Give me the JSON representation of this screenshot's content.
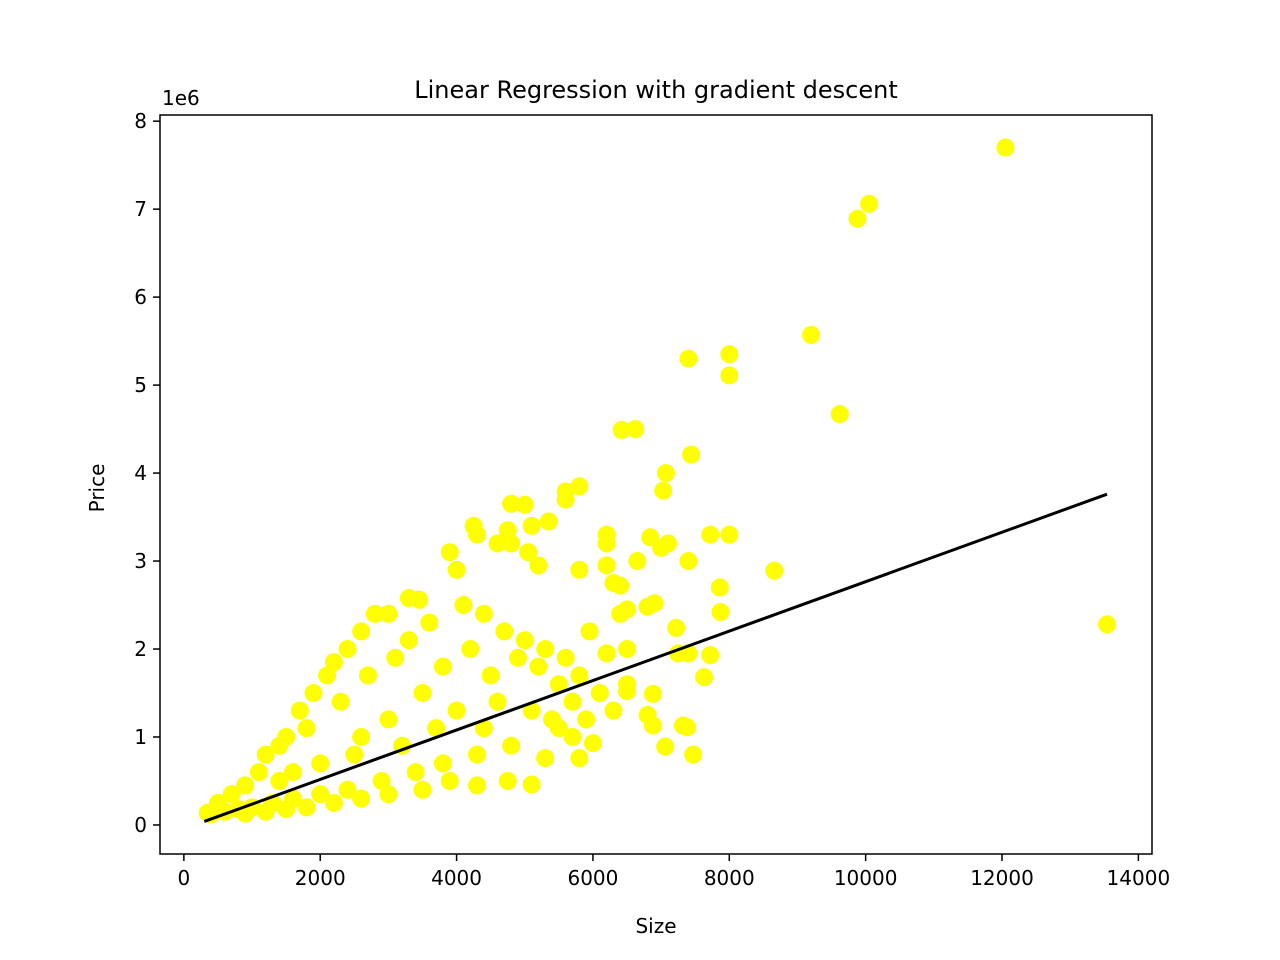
{
  "chart_data": {
    "type": "scatter",
    "title": "Linear Regression with gradient descent",
    "xlabel": "Size",
    "ylabel": "Price",
    "y_offset_label": "1e6",
    "xlim": [
      -350,
      14200
    ],
    "ylim": [
      -330000,
      8070000
    ],
    "xticks": [
      0,
      2000,
      4000,
      6000,
      8000,
      10000,
      12000,
      14000
    ],
    "xtick_labels": [
      "0",
      "2000",
      "4000",
      "6000",
      "8000",
      "10000",
      "12000",
      "14000"
    ],
    "yticks": [
      0,
      1000000,
      2000000,
      3000000,
      4000000,
      5000000,
      6000000,
      7000000,
      8000000
    ],
    "ytick_labels": [
      "0",
      "1",
      "2",
      "3",
      "4",
      "5",
      "6",
      "7",
      "8"
    ],
    "grid": false,
    "colors": {
      "points": "#ffff00",
      "line": "#000000",
      "axes": "#000000"
    },
    "series": [
      {
        "type": "scatter",
        "points": [
          [
            12050,
            7700000
          ],
          [
            10050,
            7060000
          ],
          [
            9880,
            6890000
          ],
          [
            9200,
            5570000
          ],
          [
            9620,
            4670000
          ],
          [
            8000,
            5350000
          ],
          [
            8000,
            5110000
          ],
          [
            7400,
            5300000
          ],
          [
            6420,
            4490000
          ],
          [
            6620,
            4500000
          ],
          [
            7440,
            4210000
          ],
          [
            7070,
            4000000
          ],
          [
            7030,
            3800000
          ],
          [
            5800,
            3850000
          ],
          [
            5600,
            3790000
          ],
          [
            5600,
            3700000
          ],
          [
            4800,
            3650000
          ],
          [
            5000,
            3640000
          ],
          [
            4750,
            3350000
          ],
          [
            5100,
            3400000
          ],
          [
            5350,
            3450000
          ],
          [
            4250,
            3400000
          ],
          [
            7720,
            3300000
          ],
          [
            8000,
            3300000
          ],
          [
            6840,
            3270000
          ],
          [
            7100,
            3200000
          ],
          [
            6200,
            3300000
          ],
          [
            6200,
            3200000
          ],
          [
            7000,
            3150000
          ],
          [
            6200,
            2950000
          ],
          [
            6650,
            3000000
          ],
          [
            7400,
            3000000
          ],
          [
            5800,
            2900000
          ],
          [
            8660,
            2890000
          ],
          [
            7860,
            2700000
          ],
          [
            6300,
            2750000
          ],
          [
            6400,
            2720000
          ],
          [
            6900,
            2520000
          ],
          [
            6800,
            2480000
          ],
          [
            7870,
            2420000
          ],
          [
            6500,
            2450000
          ],
          [
            6400,
            2400000
          ],
          [
            7220,
            2240000
          ],
          [
            13540,
            2280000
          ],
          [
            5950,
            2200000
          ],
          [
            6500,
            2000000
          ],
          [
            6200,
            1950000
          ],
          [
            7400,
            1950000
          ],
          [
            7250,
            1950000
          ],
          [
            7720,
            1930000
          ],
          [
            7630,
            1680000
          ],
          [
            6500,
            1600000
          ],
          [
            6500,
            1520000
          ],
          [
            6880,
            1490000
          ],
          [
            6300,
            1300000
          ],
          [
            6800,
            1250000
          ],
          [
            7320,
            1130000
          ],
          [
            7380,
            1110000
          ],
          [
            6880,
            1130000
          ],
          [
            7060,
            890000
          ],
          [
            7470,
            800000
          ],
          [
            6000,
            930000
          ],
          [
            5800,
            760000
          ],
          [
            5300,
            760000
          ],
          [
            5100,
            460000
          ],
          [
            4750,
            500000
          ],
          [
            3000,
            2400000
          ],
          [
            3300,
            2580000
          ],
          [
            3450,
            2560000
          ],
          [
            3900,
            3100000
          ],
          [
            4000,
            2900000
          ],
          [
            4300,
            3300000
          ],
          [
            4600,
            3200000
          ],
          [
            4800,
            3200000
          ],
          [
            5050,
            3100000
          ],
          [
            5200,
            2950000
          ],
          [
            2200,
            1850000
          ],
          [
            2400,
            2000000
          ],
          [
            2600,
            2200000
          ],
          [
            2800,
            2400000
          ],
          [
            1500,
            1000000
          ],
          [
            1700,
            1300000
          ],
          [
            1900,
            1500000
          ],
          [
            2100,
            1700000
          ],
          [
            3500,
            1500000
          ],
          [
            3800,
            1800000
          ],
          [
            4200,
            2000000
          ],
          [
            4500,
            1700000
          ],
          [
            4900,
            1900000
          ],
          [
            5200,
            1800000
          ],
          [
            5500,
            1600000
          ],
          [
            5700,
            1400000
          ],
          [
            5900,
            1200000
          ],
          [
            5500,
            1100000
          ],
          [
            4800,
            900000
          ],
          [
            4300,
            800000
          ],
          [
            3800,
            700000
          ],
          [
            3400,
            600000
          ],
          [
            2900,
            500000
          ],
          [
            2400,
            400000
          ],
          [
            2000,
            350000
          ],
          [
            1600,
            300000
          ],
          [
            1300,
            250000
          ],
          [
            1000,
            200000
          ],
          [
            800,
            180000
          ],
          [
            600,
            150000
          ],
          [
            400,
            120000
          ],
          [
            350,
            140000
          ],
          [
            500,
            250000
          ],
          [
            700,
            350000
          ],
          [
            900,
            450000
          ],
          [
            1100,
            600000
          ],
          [
            1200,
            800000
          ],
          [
            1400,
            900000
          ],
          [
            1800,
            1100000
          ],
          [
            2300,
            1400000
          ],
          [
            2700,
            1700000
          ],
          [
            3100,
            1900000
          ],
          [
            3300,
            2100000
          ],
          [
            3600,
            2300000
          ],
          [
            4100,
            2500000
          ],
          [
            4400,
            2400000
          ],
          [
            4700,
            2200000
          ],
          [
            5000,
            2100000
          ],
          [
            5300,
            2000000
          ],
          [
            5600,
            1900000
          ],
          [
            5800,
            1700000
          ],
          [
            6100,
            1500000
          ],
          [
            3000,
            1200000
          ],
          [
            3200,
            900000
          ],
          [
            2500,
            800000
          ],
          [
            2000,
            700000
          ],
          [
            1600,
            600000
          ],
          [
            1400,
            500000
          ],
          [
            2600,
            1000000
          ],
          [
            3700,
            1100000
          ],
          [
            4000,
            1300000
          ],
          [
            4400,
            1100000
          ],
          [
            4600,
            1400000
          ],
          [
            5100,
            1300000
          ],
          [
            5400,
            1200000
          ],
          [
            5700,
            1000000
          ],
          [
            3900,
            500000
          ],
          [
            4300,
            450000
          ],
          [
            3500,
            400000
          ],
          [
            3000,
            350000
          ],
          [
            2600,
            300000
          ],
          [
            2200,
            250000
          ],
          [
            1800,
            200000
          ],
          [
            1500,
            180000
          ],
          [
            1200,
            150000
          ],
          [
            900,
            130000
          ]
        ]
      },
      {
        "type": "line",
        "points": [
          [
            300,
            40000
          ],
          [
            13540,
            3760000
          ]
        ]
      }
    ]
  }
}
